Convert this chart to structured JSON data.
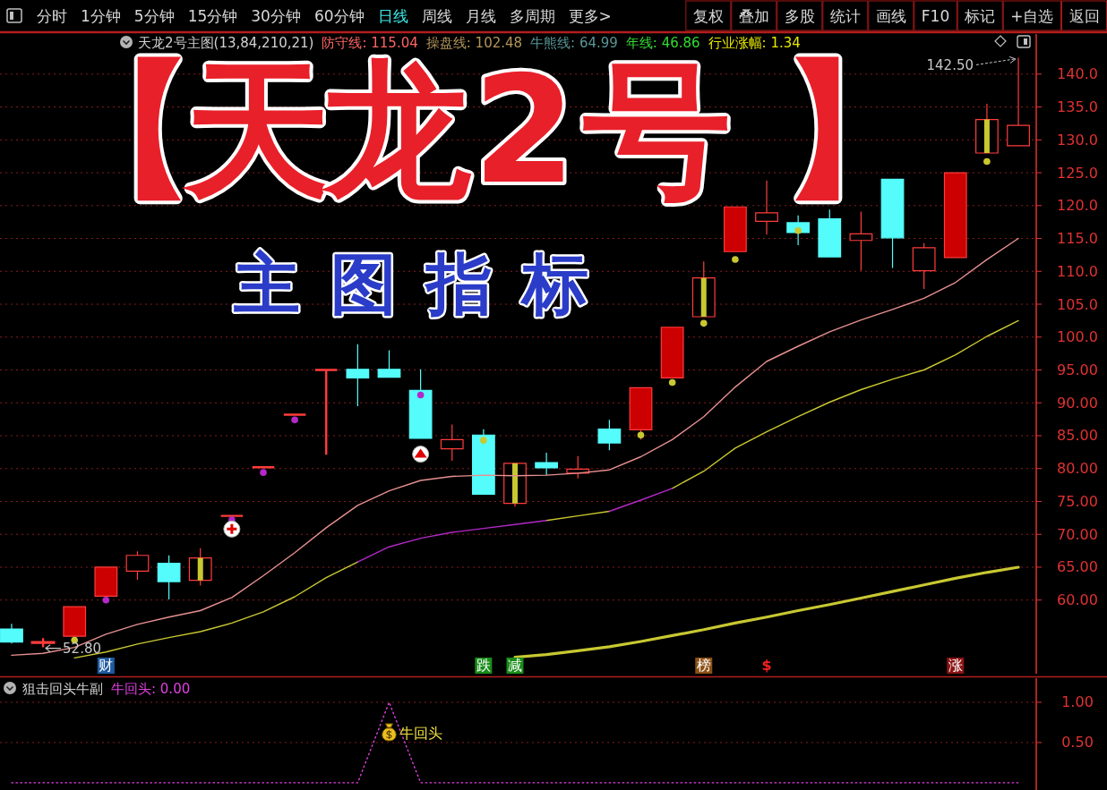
{
  "chart_data": [
    {
      "type": "other",
      "annotations": [
        "分时",
        "1分钟",
        "5分钟",
        "15分钟",
        "30分钟",
        "60分钟",
        "日线",
        "周线",
        "月线",
        "多周期",
        "更多>",
        "复权",
        "叠加",
        "多股",
        "统计",
        "画线",
        "F10",
        "标记",
        "+自选",
        "返回"
      ]
    },
    {
      "type": "candlestick",
      "title": "天龙2号主图(13,84,210,21)",
      "categories": [
        null,
        null,
        null,
        null,
        null,
        null,
        null,
        null,
        null,
        null,
        null,
        null,
        null,
        null,
        null,
        null,
        null,
        null,
        null,
        null,
        null,
        null,
        null,
        null,
        null,
        null,
        null,
        null,
        null,
        null,
        null,
        null,
        null
      ],
      "ohlc": [
        [
          55.6,
          56.4,
          53.4,
          53.6
        ],
        [
          53.5,
          54.2,
          52.8,
          53.6
        ],
        [
          54.5,
          59.0,
          54.5,
          59.0
        ],
        [
          60.6,
          65.0,
          60.6,
          65.0
        ],
        [
          64.4,
          67.4,
          63.1,
          66.8
        ],
        [
          65.6,
          66.8,
          60.1,
          62.8
        ],
        [
          63.0,
          67.9,
          62.2,
          66.4
        ],
        [
          72.8,
          72.8,
          72.8,
          72.8
        ],
        [
          80.2,
          80.2,
          80.2,
          80.2
        ],
        [
          88.2,
          88.2,
          88.2,
          88.2
        ],
        [
          95.0,
          95.0,
          82.1,
          95.0
        ],
        [
          95.1,
          98.9,
          89.5,
          93.8
        ],
        [
          95.1,
          98.0,
          93.9,
          93.9
        ],
        [
          91.9,
          95.1,
          84.6,
          84.6
        ],
        [
          83.0,
          86.7,
          81.2,
          84.4
        ],
        [
          85.1,
          86.0,
          76.1,
          76.1
        ],
        [
          74.7,
          80.8,
          74.2,
          80.8
        ],
        [
          80.9,
          82.4,
          79.0,
          80.1
        ],
        [
          79.3,
          81.9,
          78.5,
          79.9
        ],
        [
          86.0,
          87.4,
          82.8,
          83.9
        ],
        [
          85.9,
          92.3,
          84.4,
          92.3
        ],
        [
          93.8,
          101.5,
          93.8,
          101.5
        ],
        [
          103.1,
          111.5,
          103.1,
          109.0
        ],
        [
          113.0,
          119.8,
          113.0,
          119.8
        ],
        [
          117.6,
          123.8,
          115.6,
          118.9
        ],
        [
          117.4,
          118.5,
          114.0,
          115.9
        ],
        [
          118.0,
          119.4,
          112.2,
          112.2
        ],
        [
          114.7,
          119.1,
          110.1,
          115.7
        ],
        [
          124.0,
          124.0,
          110.5,
          115.1
        ],
        [
          110.1,
          114.3,
          107.3,
          113.6
        ],
        [
          112.1,
          125.0,
          112.1,
          125.0
        ],
        [
          128.0,
          135.5,
          128.0,
          133.1
        ],
        [
          129.1,
          142.5,
          129.1,
          132.2
        ]
      ],
      "colors": [
        "#54fcfc",
        "#ff3c3c",
        "#cc0000",
        "#cc0000",
        "#000000",
        "#54fcfc",
        "#000000",
        "#ff3c3c",
        "#ff3c3c",
        "#ff3c3c",
        "#ff3c3c",
        "#54fcfc",
        "#54fcfc",
        "#54fcfc",
        "#000000",
        "#54fcfc",
        "#000000",
        "#54fcfc",
        "#000000",
        "#54fcfc",
        "#cc0000",
        "#cc0000",
        "#000000",
        "#cc0000",
        "#000000",
        "#54fcfc",
        "#54fcfc",
        "#000000",
        "#54fcfc",
        "#000000",
        "#cc0000",
        "#000000",
        "#000000"
      ],
      "series": [
        {
          "type": "line",
          "color": "#e89090",
          "values": [
            51.6,
            51.9,
            52.8,
            54.8,
            56.3,
            57.4,
            58.4,
            60.4,
            63.7,
            67.2,
            71.0,
            74.4,
            76.6,
            78.2,
            78.8,
            79.0,
            78.9,
            79.0,
            79.3,
            79.8,
            81.8,
            84.4,
            87.9,
            92.4,
            96.3,
            98.6,
            100.8,
            102.6,
            104.2,
            105.9,
            108.3,
            111.8,
            115.0
          ]
        },
        {
          "type": "line",
          "color": "#c8c832",
          "values": [
            null,
            null,
            51.2,
            52.1,
            53.3,
            54.3,
            55.2,
            56.5,
            58.2,
            60.5,
            63.4,
            65.8,
            null,
            null,
            null,
            null,
            null,
            72.1,
            72.8,
            73.5,
            null,
            77.0,
            79.6,
            83.1,
            85.6,
            87.9,
            90.1,
            92.0,
            93.6,
            95.0,
            97.3,
            100.1,
            102.5
          ]
        },
        {
          "type": "line",
          "color": "#b428c8",
          "values": [
            null,
            null,
            null,
            null,
            null,
            null,
            null,
            null,
            null,
            null,
            null,
            65.8,
            68.1,
            69.4,
            70.3,
            70.9,
            71.5,
            72.1,
            null,
            73.5,
            75.2,
            77.0,
            null,
            null,
            null,
            null,
            null,
            null,
            null,
            null,
            null,
            null,
            null
          ]
        },
        {
          "type": "line",
          "color": "#c8c832",
          "values": [
            null,
            null,
            null,
            null,
            null,
            null,
            null,
            null,
            null,
            null,
            null,
            null,
            null,
            null,
            null,
            null,
            51.3,
            51.7,
            52.3,
            52.9,
            53.7,
            54.6,
            55.5,
            56.5,
            57.4,
            58.4,
            59.3,
            60.3,
            61.3,
            62.3,
            63.3,
            64.2,
            65.0
          ]
        },
        {
          "type": "bar",
          "color": "#c8c832",
          "base": [
            null,
            null,
            null,
            null,
            null,
            null,
            63.0,
            null,
            null,
            null,
            null,
            null,
            null,
            null,
            null,
            null,
            74.7,
            null,
            null,
            null,
            null,
            null,
            103.1,
            null,
            null,
            null,
            null,
            null,
            null,
            null,
            null,
            128.0,
            null
          ],
          "values": [
            null,
            null,
            null,
            null,
            null,
            null,
            3.4,
            null,
            null,
            null,
            null,
            null,
            null,
            null,
            null,
            null,
            6.1,
            null,
            null,
            null,
            null,
            null,
            5.9,
            null,
            null,
            null,
            null,
            null,
            null,
            null,
            null,
            5.1,
            null
          ]
        },
        {
          "type": "scatter",
          "marker": "circle",
          "color": "#b428c8",
          "values": [
            null,
            null,
            null,
            60.0,
            null,
            null,
            null,
            72.2,
            79.4,
            87.4,
            null,
            null,
            null,
            91.2,
            null,
            null,
            null,
            null,
            null,
            null,
            null,
            null,
            null,
            null,
            null,
            null,
            null,
            null,
            null,
            null,
            null,
            null,
            null
          ]
        },
        {
          "type": "scatter",
          "marker": "circle",
          "color": "#c8c832",
          "values": [
            null,
            null,
            53.9,
            null,
            null,
            null,
            null,
            null,
            null,
            null,
            null,
            null,
            null,
            null,
            null,
            84.3,
            null,
            null,
            null,
            null,
            85.1,
            93.1,
            102.1,
            111.8,
            null,
            116.2,
            null,
            null,
            null,
            null,
            null,
            126.7,
            null
          ]
        },
        {
          "type": "scatter",
          "marker": "cross",
          "color": "#e00000",
          "values": [
            null,
            null,
            null,
            null,
            null,
            null,
            null,
            70.8,
            null,
            null,
            null,
            null,
            null,
            null,
            null,
            null,
            null,
            null,
            null,
            null,
            null,
            null,
            null,
            null,
            null,
            null,
            null,
            null,
            null,
            null,
            null,
            null,
            null
          ]
        },
        {
          "type": "scatter",
          "marker": "triangle",
          "color": "#e00000",
          "values": [
            null,
            null,
            null,
            null,
            null,
            null,
            null,
            null,
            null,
            null,
            null,
            null,
            null,
            82.2,
            null,
            null,
            null,
            null,
            null,
            null,
            null,
            null,
            null,
            null,
            null,
            null,
            null,
            null,
            null,
            null,
            null,
            null,
            null
          ]
        }
      ],
      "ylim": [
        48.8,
        146.1
      ],
      "yticks": [
        {
          "value": 60,
          "label": "60.00"
        },
        {
          "value": 65,
          "label": "65.00"
        },
        {
          "value": 70,
          "label": "70.00"
        },
        {
          "value": 75,
          "label": "75.00"
        },
        {
          "value": 80,
          "label": "80.00"
        },
        {
          "value": 85,
          "label": "85.00"
        },
        {
          "value": 90,
          "label": "90.00"
        },
        {
          "value": 95,
          "label": "95.00"
        },
        {
          "value": 100,
          "label": "100.0"
        },
        {
          "value": 105,
          "label": "105.0"
        },
        {
          "value": 110,
          "label": "110.0"
        },
        {
          "value": 115,
          "label": "115.0"
        },
        {
          "value": 120,
          "label": "120.0"
        },
        {
          "value": 125,
          "label": "125.0"
        },
        {
          "value": 130,
          "label": "130.0"
        },
        {
          "value": 135,
          "label": "135.0"
        },
        {
          "value": 140,
          "label": "140.0"
        }
      ],
      "grid": "y",
      "tick_labels": "y",
      "annotations": [
        "防守线: 115.04",
        "操盘线: 102.48",
        "牛熊线: 64.99",
        "年线: 46.86",
        "行业涨幅: 1.34",
        "财",
        "跌",
        "减",
        "榜",
        "$",
        "涨",
        "【天龙2号】",
        "主图指标",
        "142.50",
        "52.80"
      ]
    },
    {
      "type": "line",
      "title": "狙击回头牛副",
      "categories": [
        null,
        null,
        null,
        null,
        null,
        null,
        null,
        null,
        null,
        null,
        null,
        null,
        null,
        null,
        null,
        null,
        null,
        null,
        null,
        null,
        null,
        null,
        null,
        null,
        null,
        null,
        null,
        null,
        null,
        null,
        null,
        null,
        null
      ],
      "series": [
        {
          "color": "#e040e0",
          "values": [
            0,
            0,
            0,
            0,
            0,
            0,
            0,
            0,
            0,
            0,
            0,
            0,
            1,
            0,
            0,
            0,
            0,
            0,
            0,
            0,
            0,
            0,
            0,
            0,
            0,
            0,
            0,
            0,
            0,
            0,
            0,
            0,
            0
          ]
        }
      ],
      "line_style": "dotted",
      "ylim": [
        -0.09,
        1.3
      ],
      "yticks": [
        {
          "value": 1,
          "label": "1.00"
        },
        {
          "value": 0.5,
          "label": "0.50"
        }
      ],
      "grid": "y",
      "tick_labels": "y",
      "annotations": [
        "牛回头: 0.00",
        "牛回头"
      ]
    }
  ]
}
